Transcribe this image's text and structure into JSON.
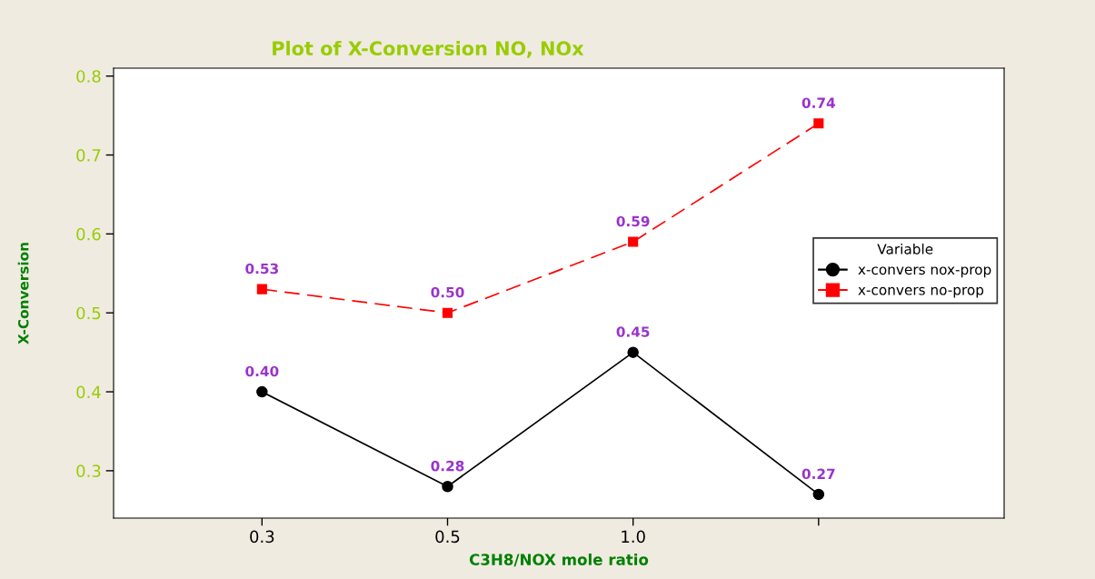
{
  "chart_data": {
    "type": "line",
    "title": "Plot of X-Conversion NO, NOx",
    "xlabel": "C3H8/NOX mole ratio",
    "ylabel": "X-Conversion",
    "legend_title": "Variable",
    "categories": [
      "0.3",
      "0.5",
      "1.0",
      null
    ],
    "series": [
      {
        "name": "x-convers nox-prop",
        "color": "#000000",
        "marker": "circle",
        "line_style": "solid",
        "values": [
          0.4,
          0.28,
          0.45,
          0.27
        ],
        "value_labels": [
          "0.40",
          "0.28",
          "0.45",
          "0.27"
        ]
      },
      {
        "name": "x-convers no-prop",
        "color": "#ff0000",
        "marker": "square",
        "line_style": "dashed",
        "values": [
          0.53,
          0.5,
          0.59,
          0.74
        ],
        "value_labels": [
          "0.53",
          "0.50",
          "0.59",
          "0.74"
        ]
      }
    ],
    "ylim": [
      0.24,
      0.81
    ],
    "yticks": [
      0.3,
      0.4,
      0.5,
      0.6,
      0.7,
      0.8
    ],
    "grid": false,
    "legend": "right"
  }
}
